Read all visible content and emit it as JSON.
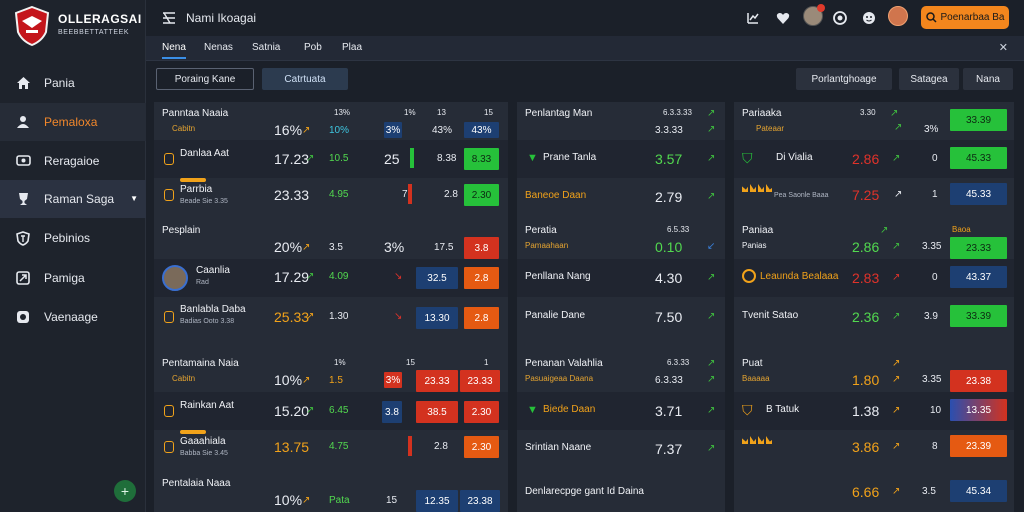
{
  "brand": {
    "name": "OLLERAGSAI",
    "tagline": "BEEBBETTATTEEK"
  },
  "sidebar": {
    "items": [
      {
        "label": "Pania",
        "icon": "home-icon"
      },
      {
        "label": "Pemaloxa",
        "icon": "user-icon"
      },
      {
        "label": "Reragaioe",
        "icon": "monitor-icon"
      },
      {
        "label": "Raman Saga",
        "icon": "trophy-icon"
      },
      {
        "label": "Pebinios",
        "icon": "shield-icon"
      },
      {
        "label": "Pamiga",
        "icon": "export-icon"
      },
      {
        "label": "Vaenaage",
        "icon": "badge-icon"
      }
    ],
    "fab_label": "+"
  },
  "topbar": {
    "title": "Nami Ikoagai",
    "cta_label": "Poenarbaa Ba",
    "icons": [
      "chart-icon",
      "heart-icon",
      "record-icon",
      "smile-icon"
    ]
  },
  "subtabs": [
    "Nena",
    "Nenas",
    "Satnia",
    "Pob",
    "Plaa"
  ],
  "filters": {
    "left": [
      "Poraing Kane",
      "Catrtuata"
    ],
    "right": [
      "Porlantghoage",
      "Satagea",
      "Nana"
    ]
  },
  "panels": {
    "left": [
      {
        "header": {
          "name": "Panntaa Naaia",
          "sub": "Cabitn",
          "cols": [
            "13%",
            "1%",
            "13",
            "15"
          ],
          "odd": "16%",
          "v1": "10%",
          "v2": "3%",
          "v3": "43%",
          "chip": "43%"
        },
        "rows": [
          {
            "name": "Danlaa Aat",
            "sub": "",
            "odd": "17.23",
            "v1": "10.5",
            "v2": "25",
            "v3": "8.38",
            "chip": "8.33"
          },
          {
            "name": "Parrbia",
            "sub": "Beade Sie 3.35",
            "odd": "23.33",
            "v1": "4.95",
            "v2": "7",
            "v3": "2.8",
            "chip": "2.30"
          }
        ]
      },
      {
        "header": {
          "name": "Pesplain",
          "sub": "",
          "cols": [
            "",
            "",
            "",
            ""
          ],
          "odd": "20%",
          "v1": "3.5",
          "v2": "3%",
          "v3": "17.5",
          "chip": "3.8"
        },
        "rows": [
          {
            "name": "Caanlia",
            "sub": "Rad",
            "odd": "17.29",
            "v1": "4.09",
            "v2": "",
            "v3": "32.5",
            "chip": "2.8"
          },
          {
            "name": "Banlabla Daba",
            "sub": "Badias Ooto 3.38",
            "odd": "25.33",
            "v1": "1.30",
            "v2": "",
            "v3": "13.30",
            "chip": "2.8"
          }
        ]
      },
      {
        "header": {
          "name": "Pentamaina Naia",
          "sub": "Cabitn",
          "cols": [
            "1%",
            "",
            "15",
            "1"
          ],
          "odd": "10%",
          "v1": "1.5",
          "v2": "3%",
          "v3": "23.33",
          "chip": "23.33"
        },
        "rows": [
          {
            "name": "Rainkan Aat",
            "sub": "",
            "odd": "15.20",
            "v1": "6.45",
            "v2": "3.8",
            "v3": "38.5",
            "chip": "2.30"
          },
          {
            "name": "Gaaahiala",
            "sub": "Babba Sie 3.45",
            "odd": "13.75",
            "v1": "4.75",
            "v2": "",
            "v3": "2.8",
            "chip": "2.30"
          }
        ]
      },
      {
        "header": {
          "name": "Pentalaia Naaa",
          "sub": "",
          "cols": [],
          "odd": "10%",
          "v1": "Pata",
          "v2": "15",
          "v3": "12.35",
          "chip": "23.38"
        },
        "rows": []
      }
    ],
    "middle": [
      {
        "header": {
          "name": "Penlantag Man",
          "sub": "",
          "col": "6.3.3.33",
          "odd": "3.3.33"
        },
        "rows": [
          {
            "name": "Prane Tanla",
            "odd": "3.57"
          },
          {
            "name": "Baneoe Daan",
            "odd": "2.79"
          }
        ]
      },
      {
        "header": {
          "name": "Peratia",
          "sub": "Pamaahaan",
          "col": "6.5.33",
          "odd": "0.10"
        },
        "rows": [
          {
            "name": "Penllana Nang",
            "odd": "4.30"
          },
          {
            "name": "Panalie Dane",
            "odd": "7.50"
          }
        ]
      },
      {
        "header": {
          "name": "Penanan Valahlia",
          "sub": "Pasuaigeaa Daana",
          "col": "6.3.33",
          "odd": "6.3.33"
        },
        "rows": [
          {
            "name": "Biede Daan",
            "odd": "3.71"
          },
          {
            "name": "Srintian Naane",
            "odd": "7.37"
          }
        ]
      },
      {
        "header": {
          "name": "Denlarecpge gant Id Daina",
          "sub": "",
          "col": "",
          "odd": ""
        },
        "rows": []
      }
    ],
    "right": [
      {
        "header": {
          "name": "Pariaaka",
          "sub": "Pateaar",
          "col": "3.30",
          "odd": "3%",
          "chip": "33.39"
        },
        "rows": [
          {
            "name": "Di Vialia",
            "odd": "2.86",
            "n": "0",
            "chip": "45.33"
          },
          {
            "name": "Pea Saonle Baaa",
            "odd": "7.25",
            "n": "1",
            "chip": "45.33"
          }
        ]
      },
      {
        "header": {
          "name": "Paniaa",
          "sub": "Panias",
          "col": "Baoa",
          "odd": "2.86",
          "n": "3.35",
          "chip": "23.33"
        },
        "rows": [
          {
            "name": "Leaunda Bealaaa",
            "odd": "2.83",
            "n": "0",
            "chip": "43.37"
          },
          {
            "name": "Tvenit Satao",
            "odd": "2.36",
            "n": "3.9",
            "chip": "33.39"
          }
        ]
      },
      {
        "header": {
          "name": "Puat",
          "sub": "Baaaaa",
          "col": "",
          "odd": "1.80",
          "n": "3.35",
          "chip": "23.38"
        },
        "rows": [
          {
            "name": "B Tatuk",
            "odd": "1.38",
            "n": "10",
            "chip": "13.35"
          },
          {
            "name": "",
            "odd": "3.86",
            "n": "8",
            "chip": "23.39"
          }
        ]
      },
      {
        "header": {
          "name": "",
          "sub": "",
          "col": "",
          "odd": "6.66",
          "n": "3.5",
          "chip": "45.34"
        },
        "rows": []
      }
    ]
  },
  "colors": {
    "accent": "#f3861d",
    "green": "#26c13a",
    "red": "#d3321f",
    "blue": "#1d3f72",
    "bg": "#1b2029"
  }
}
